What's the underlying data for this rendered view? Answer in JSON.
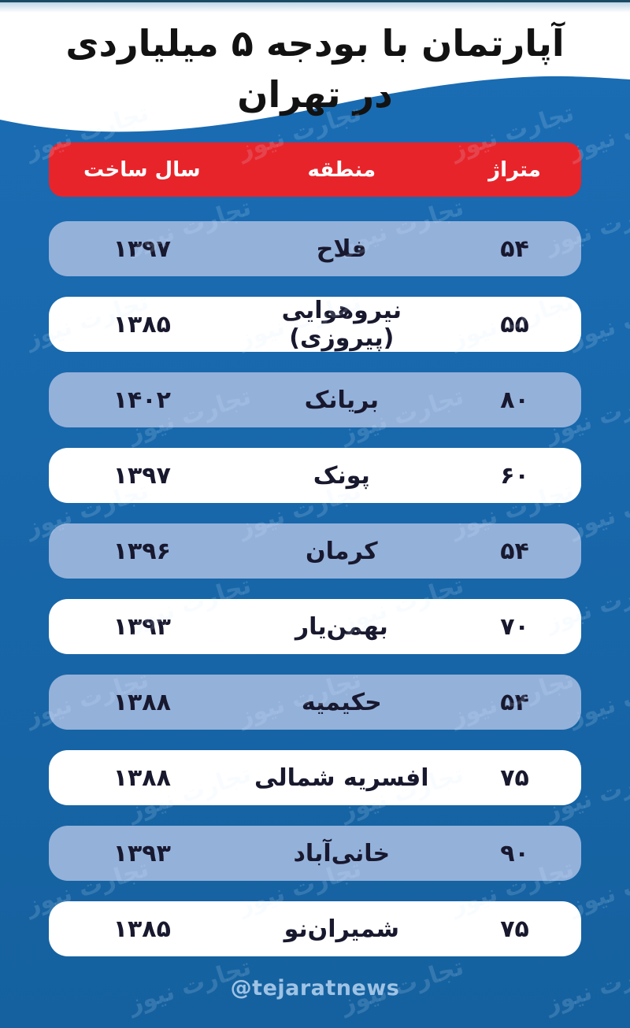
{
  "title": {
    "line1": "آپارتمان با بودجه ۵ میلیاردی",
    "line2": "در تهران"
  },
  "table": {
    "columns": [
      "متراژ",
      "منطقه",
      "سال ساخت"
    ],
    "rows": [
      {
        "area": "۵۴",
        "district": "فلاح",
        "year": "۱۳۹۷"
      },
      {
        "area": "۵۵",
        "district": "نیروهوایی (پیروزی)",
        "year": "۱۳۸۵"
      },
      {
        "area": "۸۰",
        "district": "بریانک",
        "year": "۱۴۰۲"
      },
      {
        "area": "۶۰",
        "district": "پونک",
        "year": "۱۳۹۷"
      },
      {
        "area": "۵۴",
        "district": "کرمان",
        "year": "۱۳۹۶"
      },
      {
        "area": "۷۰",
        "district": "بهمن‌یار",
        "year": "۱۳۹۳"
      },
      {
        "area": "۵۴",
        "district": "حکیمیه",
        "year": "۱۳۸۸"
      },
      {
        "area": "۷۵",
        "district": "افسریه شمالی",
        "year": "۱۳۸۸"
      },
      {
        "area": "۹۰",
        "district": "خانی‌آباد",
        "year": "۱۳۹۳"
      },
      {
        "area": "۷۵",
        "district": "شمیران‌نو",
        "year": "۱۳۸۵"
      }
    ]
  },
  "footer": {
    "handle": "@tejaratnews"
  },
  "watermark": {
    "text": "تجارت نیوز"
  },
  "colors": {
    "background_blue": "#1767ab",
    "row_light_blue": "#94b1da",
    "header_red": "#e8242b",
    "title_text": "#121212",
    "row_text": "#18182e",
    "footer_text": "#9fc3e4",
    "top_edge_line": "#1b4a63"
  },
  "chart_data": {
    "type": "table",
    "title": "آپارتمان با بودجه ۵ میلیاردی در تهران",
    "columns": [
      "متراژ",
      "منطقه",
      "سال ساخت"
    ],
    "rows": [
      [
        "۵۴",
        "فلاح",
        "۱۳۹۷"
      ],
      [
        "۵۵",
        "نیروهوایی (پیروزی)",
        "۱۳۸۵"
      ],
      [
        "۸۰",
        "بریانک",
        "۱۴۰۲"
      ],
      [
        "۶۰",
        "پونک",
        "۱۳۹۷"
      ],
      [
        "۵۴",
        "کرمان",
        "۱۳۹۶"
      ],
      [
        "۷۰",
        "بهمن‌یار",
        "۱۳۹۳"
      ],
      [
        "۵۴",
        "حکیمیه",
        "۱۳۸۸"
      ],
      [
        "۷۵",
        "افسریه شمالی",
        "۱۳۸۸"
      ],
      [
        "۹۰",
        "خانی‌آباد",
        "۱۳۹۳"
      ],
      [
        "۷۵",
        "شمیران‌نو",
        "۱۳۸۵"
      ]
    ]
  }
}
